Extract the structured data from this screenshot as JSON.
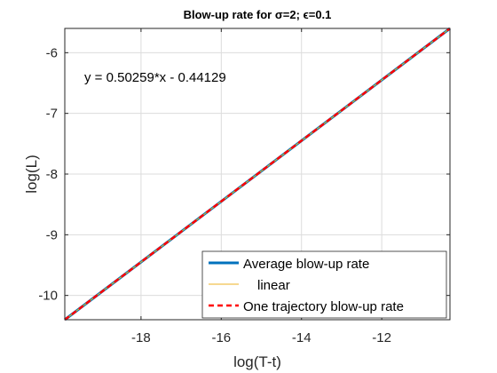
{
  "chart_data": {
    "type": "line",
    "title": "Blow-up rate for σ=2; ϵ=0.1",
    "xlabel": "log(T-t)",
    "ylabel": "log(L)",
    "xlim": [
      -19.9,
      -10.3
    ],
    "ylim": [
      -10.4,
      -5.6
    ],
    "xticks": [
      -18,
      -16,
      -14,
      -12
    ],
    "yticks": [
      -10,
      -9,
      -8,
      -7,
      -6
    ],
    "xtick_labels": [
      "-18",
      "-16",
      "-14",
      "-12"
    ],
    "ytick_labels": [
      "-10",
      "-9",
      "-8",
      "-7",
      "-6"
    ],
    "grid": true,
    "legend_position": "bottom-right",
    "annotation": "y = 0.50259*x - 0.44129",
    "colors": {
      "average": "#0072BD",
      "linear": "#EDB120",
      "one_trajectory": "#FF0000",
      "fit_overlay": "#77AC30"
    },
    "series": [
      {
        "name": "Average blow-up rate",
        "style": "solid",
        "x": [
          -19.9,
          -10.3
        ],
        "y": [
          -10.4,
          -5.6
        ]
      },
      {
        "name": "linear",
        "style": "solid-thin",
        "x": [
          -19.9,
          -10.3
        ],
        "y": [
          -10.4,
          -5.6
        ]
      },
      {
        "name": "One trajectory blow-up rate",
        "style": "dashed",
        "x": [
          -19.9,
          -10.3
        ],
        "y": [
          -10.4,
          -5.6
        ]
      }
    ]
  }
}
